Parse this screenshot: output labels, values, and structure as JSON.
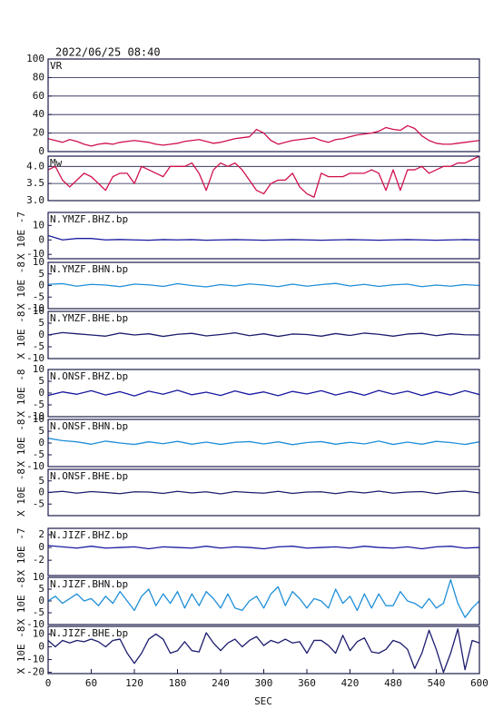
{
  "title": "2022/06/25 08:40",
  "xaxis": {
    "label": "SEC",
    "xlim": [
      0,
      600
    ],
    "xticks": [
      0,
      60,
      120,
      180,
      240,
      300,
      360,
      420,
      480,
      540,
      600
    ]
  },
  "chart_data": [
    {
      "type": "line",
      "label": "VR",
      "color": "#d0104c",
      "grid": true,
      "ylim": [
        0,
        100
      ],
      "yticks": [
        0,
        20,
        40,
        60,
        80,
        100
      ],
      "x": [
        0,
        10,
        20,
        30,
        40,
        50,
        60,
        70,
        80,
        90,
        100,
        110,
        120,
        130,
        140,
        150,
        160,
        170,
        180,
        190,
        200,
        210,
        220,
        230,
        240,
        250,
        260,
        270,
        280,
        290,
        300,
        310,
        320,
        330,
        340,
        350,
        360,
        370,
        380,
        390,
        400,
        410,
        420,
        430,
        440,
        450,
        460,
        470,
        480,
        490,
        500,
        510,
        520,
        530,
        540,
        550,
        560,
        570,
        580,
        590,
        600
      ],
      "values": [
        14,
        12,
        10,
        13,
        11,
        8,
        6,
        8,
        9,
        8,
        10,
        11,
        12,
        11,
        10,
        8,
        7,
        8,
        9,
        11,
        12,
        13,
        11,
        9,
        10,
        12,
        14,
        15,
        16,
        24,
        20,
        12,
        8,
        10,
        12,
        13,
        14,
        15,
        12,
        10,
        13,
        14,
        16,
        18,
        19,
        20,
        22,
        26,
        24,
        23,
        28,
        25,
        17,
        12,
        9,
        8,
        8,
        9,
        10,
        11,
        12
      ]
    },
    {
      "type": "line",
      "label": "Mw",
      "color": "#d0104c",
      "grid": true,
      "ylim": [
        3.0,
        4.3
      ],
      "yticks": [
        {
          "value": 3,
          "label": "3.0"
        },
        3.5,
        {
          "value": 4,
          "label": "4.0"
        }
      ],
      "x": [
        0,
        10,
        20,
        30,
        40,
        50,
        60,
        70,
        80,
        90,
        100,
        110,
        120,
        130,
        140,
        150,
        160,
        170,
        180,
        190,
        200,
        210,
        220,
        230,
        240,
        250,
        260,
        270,
        280,
        290,
        300,
        310,
        320,
        330,
        340,
        350,
        360,
        370,
        380,
        390,
        400,
        410,
        420,
        430,
        440,
        450,
        460,
        470,
        480,
        490,
        500,
        510,
        520,
        530,
        540,
        550,
        560,
        570,
        580,
        590,
        600
      ],
      "values": [
        3.9,
        4.0,
        3.6,
        3.4,
        3.6,
        3.8,
        3.7,
        3.5,
        3.3,
        3.7,
        3.8,
        3.8,
        3.5,
        4.0,
        3.9,
        3.8,
        3.7,
        4.0,
        4.0,
        4.0,
        4.1,
        3.8,
        3.3,
        3.9,
        4.1,
        4.0,
        4.1,
        3.9,
        3.6,
        3.3,
        3.2,
        3.5,
        3.6,
        3.6,
        3.8,
        3.4,
        3.2,
        3.1,
        3.8,
        3.7,
        3.7,
        3.7,
        3.8,
        3.8,
        3.8,
        3.9,
        3.8,
        3.3,
        3.9,
        3.3,
        3.9,
        3.9,
        4.0,
        3.8,
        3.9,
        4.0,
        4.0,
        4.1,
        4.1,
        4.2,
        4.3
      ]
    },
    {
      "type": "line",
      "label": "N.YMZF.BHZ.bp",
      "ylabel": "X 10E -7",
      "color": "#1a1aa0",
      "grid": false,
      "ylim": [
        -13,
        19
      ],
      "yticks": [
        -10,
        0,
        10
      ],
      "x": [
        0,
        20,
        40,
        60,
        80,
        100,
        120,
        140,
        160,
        180,
        200,
        220,
        240,
        260,
        280,
        300,
        320,
        340,
        360,
        380,
        400,
        420,
        440,
        460,
        480,
        500,
        520,
        540,
        560,
        580,
        600
      ],
      "values": [
        3,
        0,
        1,
        1,
        0,
        0.3,
        0,
        -0.2,
        0.2,
        0,
        0.2,
        -0.2,
        0,
        0.2,
        0,
        -0.2,
        0,
        0.2,
        0,
        -0.2,
        0,
        0.2,
        0,
        -0.2,
        0,
        0.2,
        0,
        -0.2,
        0,
        0.2,
        0
      ]
    },
    {
      "type": "line",
      "label": "N.YMZF.BHN.bp",
      "ylabel": "X 10E -8",
      "color": "#1f8fd8",
      "grid": false,
      "ylim": [
        -10,
        10
      ],
      "yticks": [
        -10,
        -5,
        0,
        5,
        10
      ],
      "x": [
        0,
        20,
        40,
        60,
        80,
        100,
        120,
        140,
        160,
        180,
        200,
        220,
        240,
        260,
        280,
        300,
        320,
        340,
        360,
        380,
        400,
        420,
        440,
        460,
        480,
        500,
        520,
        540,
        560,
        580,
        600
      ],
      "values": [
        0.5,
        0.8,
        -0.3,
        0.5,
        0.2,
        -0.5,
        0.6,
        0.3,
        -0.4,
        0.8,
        0,
        -0.6,
        0.4,
        -0.2,
        0.7,
        0.2,
        -0.5,
        0.6,
        -0.3,
        0.4,
        0.9,
        -0.2,
        0.5,
        -0.4,
        0.3,
        0.6,
        -0.5,
        0.2,
        -0.3,
        0.4,
        0
      ]
    },
    {
      "type": "line",
      "label": "N.YMZF.BHE.bp",
      "ylabel": "X 10E -8",
      "color": "#1c1c6e",
      "grid": false,
      "ylim": [
        -10,
        10
      ],
      "yticks": [
        -10,
        -5,
        0,
        5,
        10
      ],
      "x": [
        0,
        20,
        40,
        60,
        80,
        100,
        120,
        140,
        160,
        180,
        200,
        220,
        240,
        260,
        280,
        300,
        320,
        340,
        360,
        380,
        400,
        420,
        440,
        460,
        480,
        500,
        520,
        540,
        560,
        580,
        600
      ],
      "values": [
        0,
        1,
        0.5,
        0,
        -0.5,
        0.8,
        0,
        0.5,
        -0.6,
        0.3,
        0.7,
        -0.4,
        0.2,
        0.9,
        -0.3,
        0.5,
        -0.6,
        0.4,
        0.2,
        -0.5,
        0.6,
        -0.2,
        0.8,
        0.3,
        -0.5,
        0.4,
        0.7,
        -0.3,
        0.5,
        0.1,
        0
      ]
    },
    {
      "type": "line",
      "label": "N.ONSF.BHZ.bp",
      "ylabel": "X 10E -8",
      "color": "#1a1aa0",
      "grid": false,
      "ylim": [
        -10,
        10
      ],
      "yticks": [
        -10,
        -5,
        0,
        5,
        10
      ],
      "x": [
        0,
        20,
        40,
        60,
        80,
        100,
        120,
        140,
        160,
        180,
        200,
        220,
        240,
        260,
        280,
        300,
        320,
        340,
        360,
        380,
        400,
        420,
        440,
        460,
        480,
        500,
        520,
        540,
        560,
        580,
        600
      ],
      "values": [
        -1,
        0.5,
        -0.5,
        1,
        -0.8,
        0.6,
        -1.2,
        0.8,
        -0.5,
        1.2,
        -0.7,
        0.4,
        -1,
        0.9,
        -0.6,
        0.5,
        -1.1,
        0.7,
        -0.4,
        1,
        -0.8,
        0.6,
        -0.9,
        1.1,
        -0.5,
        0.8,
        -1,
        0.6,
        -0.8,
        1,
        -0.6
      ]
    },
    {
      "type": "line",
      "label": "N.ONSF.BHN.bp",
      "ylabel": "X 10E -8",
      "color": "#1f8fd8",
      "grid": false,
      "ylim": [
        -10,
        10
      ],
      "yticks": [
        -10,
        -5,
        0,
        5,
        10
      ],
      "x": [
        0,
        20,
        40,
        60,
        80,
        100,
        120,
        140,
        160,
        180,
        200,
        220,
        240,
        260,
        280,
        300,
        320,
        340,
        360,
        380,
        400,
        420,
        440,
        460,
        480,
        500,
        520,
        540,
        560,
        580,
        600
      ],
      "values": [
        2,
        1,
        0.5,
        -0.5,
        0.8,
        0,
        -0.6,
        0.5,
        -0.3,
        0.7,
        -0.5,
        0.4,
        -0.6,
        0.3,
        0.6,
        -0.4,
        0.5,
        -0.7,
        0.2,
        0.6,
        -0.5,
        0.3,
        -0.4,
        0.8,
        -0.6,
        0.4,
        -0.5,
        0.7,
        0.2,
        -0.6,
        0.5
      ]
    },
    {
      "type": "line",
      "label": "N.ONSF.BHE.bp",
      "ylabel": "X 10E -8",
      "color": "#1c1c6e",
      "grid": false,
      "ylim": [
        -10,
        10
      ],
      "yticks": [
        -5,
        0,
        5
      ],
      "x": [
        0,
        20,
        40,
        60,
        80,
        100,
        120,
        140,
        160,
        180,
        200,
        220,
        240,
        260,
        280,
        300,
        320,
        340,
        360,
        380,
        400,
        420,
        440,
        460,
        480,
        500,
        520,
        540,
        560,
        580,
        600
      ],
      "values": [
        0,
        0.5,
        -0.3,
        0.4,
        0,
        -0.5,
        0.3,
        0.2,
        -0.4,
        0.5,
        -0.2,
        0.3,
        -0.6,
        0.4,
        0,
        -0.3,
        0.5,
        -0.4,
        0.2,
        0.3,
        -0.5,
        0.4,
        -0.2,
        0.6,
        -0.3,
        0.2,
        0.4,
        -0.5,
        0.3,
        0.6,
        -0.2
      ]
    },
    {
      "type": "line",
      "label": "N.JIZF.BHZ.bp",
      "ylabel": "X 10E -7",
      "color": "#1a1aa0",
      "grid": false,
      "ylim": [
        -4.4,
        3
      ],
      "yticks": [
        -2,
        0,
        2
      ],
      "x": [
        0,
        20,
        40,
        60,
        80,
        100,
        120,
        140,
        160,
        180,
        200,
        220,
        240,
        260,
        280,
        300,
        320,
        340,
        360,
        380,
        400,
        420,
        440,
        460,
        480,
        500,
        520,
        540,
        560,
        580,
        600
      ],
      "values": [
        0.3,
        0.1,
        -0.1,
        0.2,
        -0.1,
        0,
        0.1,
        -0.2,
        0.1,
        0,
        -0.1,
        0.2,
        -0.1,
        0.1,
        0,
        -0.2,
        0.1,
        0.2,
        -0.1,
        0,
        0.1,
        -0.1,
        0.2,
        0,
        -0.1,
        0.1,
        -0.2,
        0.1,
        0.2,
        -0.1,
        0
      ]
    },
    {
      "type": "line",
      "label": "N.JIZF.BHN.bp",
      "ylabel": "X 10E -8",
      "color": "#1f8fd8",
      "grid": false,
      "ylim": [
        -10,
        10
      ],
      "yticks": [
        -10,
        -5,
        0,
        5,
        10
      ],
      "x": [
        0,
        10,
        20,
        30,
        40,
        50,
        60,
        70,
        80,
        90,
        100,
        110,
        120,
        130,
        140,
        150,
        160,
        170,
        180,
        190,
        200,
        210,
        220,
        230,
        240,
        250,
        260,
        270,
        280,
        290,
        300,
        310,
        320,
        330,
        340,
        350,
        360,
        370,
        380,
        390,
        400,
        410,
        420,
        430,
        440,
        450,
        460,
        470,
        480,
        490,
        500,
        510,
        520,
        530,
        540,
        550,
        560,
        570,
        580,
        590,
        600
      ],
      "values": [
        0,
        2,
        -1,
        1,
        3,
        0,
        1,
        -2,
        2,
        -1,
        4,
        0,
        -4,
        2,
        5,
        -2,
        3,
        -1,
        4,
        -3,
        3,
        -2,
        4,
        1,
        -3,
        3,
        -3,
        -4,
        0,
        2,
        -3,
        3,
        6,
        -2,
        4,
        1,
        -3,
        1,
        0,
        -3,
        5,
        -1,
        2,
        -4,
        3,
        -3,
        3,
        -2,
        -2,
        4,
        0,
        -1,
        -3,
        1,
        -3,
        -1,
        9,
        -1,
        -7,
        -3,
        0
      ]
    },
    {
      "type": "line",
      "label": "N.JIZF.BHE.bp",
      "ylabel": "X 10E -8",
      "color": "#1c1c6e",
      "grid": false,
      "ylim": [
        -21,
        16
      ],
      "yticks": [
        -20,
        -10,
        0,
        10
      ],
      "x": [
        0,
        10,
        20,
        30,
        40,
        50,
        60,
        70,
        80,
        90,
        100,
        110,
        120,
        130,
        140,
        150,
        160,
        170,
        180,
        190,
        200,
        210,
        220,
        230,
        240,
        250,
        260,
        270,
        280,
        290,
        300,
        310,
        320,
        330,
        340,
        350,
        360,
        370,
        380,
        390,
        400,
        410,
        420,
        430,
        440,
        450,
        460,
        470,
        480,
        490,
        500,
        510,
        520,
        530,
        540,
        550,
        560,
        570,
        580,
        590,
        600
      ],
      "values": [
        5,
        0,
        5,
        3,
        5,
        4,
        6,
        4,
        0,
        5,
        6,
        -5,
        -13,
        -5,
        6,
        10,
        6,
        -5,
        -3,
        4,
        -3,
        -4,
        11,
        3,
        -3,
        3,
        6,
        0,
        5,
        8,
        1,
        5,
        3,
        6,
        3,
        4,
        -5,
        5,
        5,
        1,
        -5,
        9,
        -3,
        4,
        7,
        -4,
        -5,
        -2,
        5,
        3,
        -2,
        -17,
        -5,
        13,
        -2,
        -20,
        -5,
        14,
        -18,
        5,
        3
      ]
    }
  ]
}
